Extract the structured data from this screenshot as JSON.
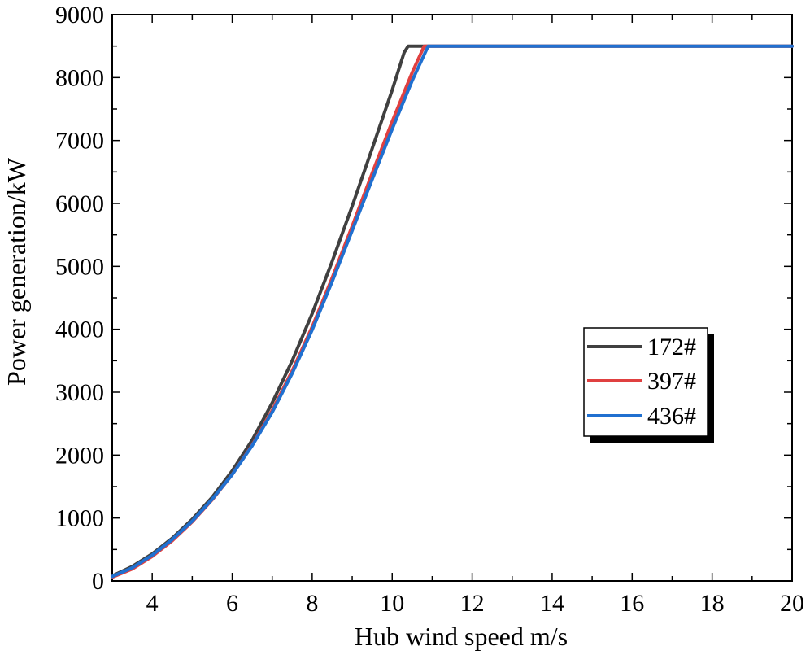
{
  "chart_data": {
    "type": "line",
    "title": "",
    "xlabel": "Hub wind speed  m/s",
    "ylabel": "Power generation/kW",
    "xlim": [
      3,
      20
    ],
    "ylim": [
      0,
      9000
    ],
    "x_ticks": [
      4,
      6,
      8,
      10,
      12,
      14,
      16,
      18,
      20
    ],
    "x_tick_labels": [
      "4",
      "6",
      "8",
      "10",
      "12",
      "14",
      "16",
      "18",
      "20"
    ],
    "y_ticks": [
      0,
      1000,
      2000,
      3000,
      4000,
      5000,
      6000,
      7000,
      8000,
      9000
    ],
    "y_tick_labels": [
      "0",
      "1000",
      "2000",
      "3000",
      "4000",
      "5000",
      "6000",
      "7000",
      "8000",
      "9000"
    ],
    "grid": false,
    "legend_position": "center-right",
    "series": [
      {
        "name": "172#",
        "color": "#404040",
        "x": [
          3,
          3.5,
          4,
          4.5,
          5,
          5.5,
          6,
          6.5,
          7,
          7.5,
          8,
          8.5,
          9,
          9.5,
          10,
          10.3,
          10.4,
          11,
          12,
          13,
          14,
          15,
          16,
          17,
          18,
          19,
          20
        ],
        "y": [
          80,
          230,
          430,
          680,
          980,
          1330,
          1750,
          2240,
          2830,
          3500,
          4250,
          5080,
          5960,
          6870,
          7800,
          8400,
          8500,
          8500,
          8500,
          8500,
          8500,
          8500,
          8500,
          8500,
          8500,
          8500,
          8500
        ]
      },
      {
        "name": "397#",
        "color": "#e04040",
        "x": [
          3,
          3.5,
          4,
          4.5,
          5,
          5.5,
          6,
          6.5,
          7,
          7.5,
          8,
          8.5,
          9,
          9.5,
          10,
          10.5,
          10.8,
          11,
          12,
          13,
          14,
          15,
          16,
          17,
          18,
          19,
          20
        ],
        "y": [
          60,
          190,
          390,
          640,
          940,
          1290,
          1690,
          2160,
          2710,
          3340,
          4040,
          4820,
          5640,
          6480,
          7300,
          8080,
          8500,
          8500,
          8500,
          8500,
          8500,
          8500,
          8500,
          8500,
          8500,
          8500,
          8500
        ]
      },
      {
        "name": "436#",
        "color": "#2070d0",
        "x": [
          3,
          3.5,
          4,
          4.5,
          5,
          5.5,
          6,
          6.5,
          7,
          7.5,
          8,
          8.5,
          9,
          9.5,
          10,
          10.5,
          10.9,
          11,
          12,
          13,
          14,
          15,
          16,
          17,
          18,
          19,
          20
        ],
        "y": [
          70,
          210,
          410,
          660,
          950,
          1300,
          1690,
          2150,
          2680,
          3300,
          3990,
          4760,
          5570,
          6380,
          7180,
          7950,
          8500,
          8500,
          8500,
          8500,
          8500,
          8500,
          8500,
          8500,
          8500,
          8500,
          8500
        ]
      }
    ]
  }
}
